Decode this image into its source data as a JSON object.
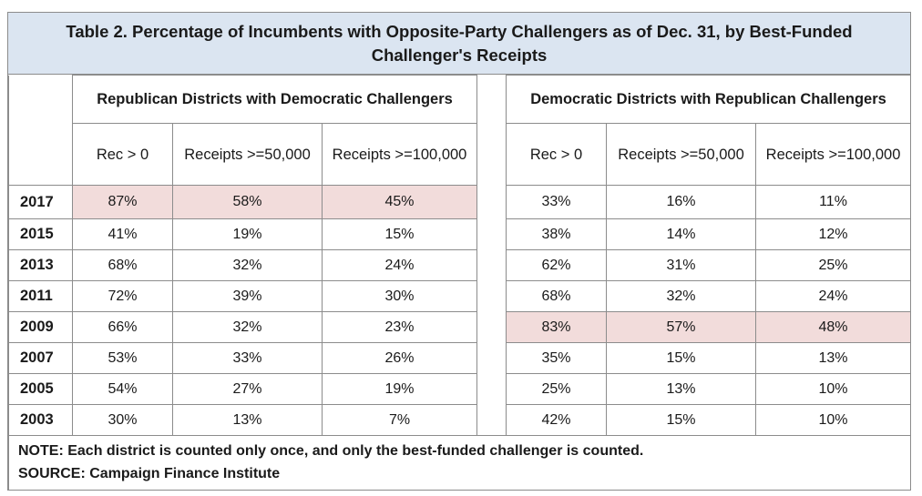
{
  "title": "Table 2. Percentage of Incumbents with Opposite-Party Challengers as of Dec. 31, by Best-Funded Challenger's Receipts",
  "group_headers": {
    "republican": "Republican Districts with Democratic Challengers",
    "democratic": "Democratic Districts with Republican Challengers"
  },
  "sub_headers": [
    "Rec > 0",
    "Receipts >=50,000",
    "Receipts >=100,000"
  ],
  "rows": [
    {
      "year": "2017",
      "rep": [
        "87%",
        "58%",
        "45%"
      ],
      "dem": [
        "33%",
        "16%",
        "11%"
      ]
    },
    {
      "year": "2015",
      "rep": [
        "41%",
        "19%",
        "15%"
      ],
      "dem": [
        "38%",
        "14%",
        "12%"
      ]
    },
    {
      "year": "2013",
      "rep": [
        "68%",
        "32%",
        "24%"
      ],
      "dem": [
        "62%",
        "31%",
        "25%"
      ]
    },
    {
      "year": "2011",
      "rep": [
        "72%",
        "39%",
        "30%"
      ],
      "dem": [
        "68%",
        "32%",
        "24%"
      ]
    },
    {
      "year": "2009",
      "rep": [
        "66%",
        "32%",
        "23%"
      ],
      "dem": [
        "83%",
        "57%",
        "48%"
      ]
    },
    {
      "year": "2007",
      "rep": [
        "53%",
        "33%",
        "26%"
      ],
      "dem": [
        "35%",
        "15%",
        "13%"
      ]
    },
    {
      "year": "2005",
      "rep": [
        "54%",
        "27%",
        "19%"
      ],
      "dem": [
        "25%",
        "13%",
        "10%"
      ]
    },
    {
      "year": "2003",
      "rep": [
        "30%",
        "13%",
        "7%"
      ],
      "dem": [
        "42%",
        "15%",
        "10%"
      ]
    }
  ],
  "highlights": {
    "rep_row": "2017",
    "dem_row": "2009",
    "color": "#f2dcdb"
  },
  "title_bg": "#dbe5f1",
  "note": "NOTE: Each district is counted only once, and only the best-funded challenger is counted.",
  "source": "SOURCE: Campaign Finance Institute"
}
